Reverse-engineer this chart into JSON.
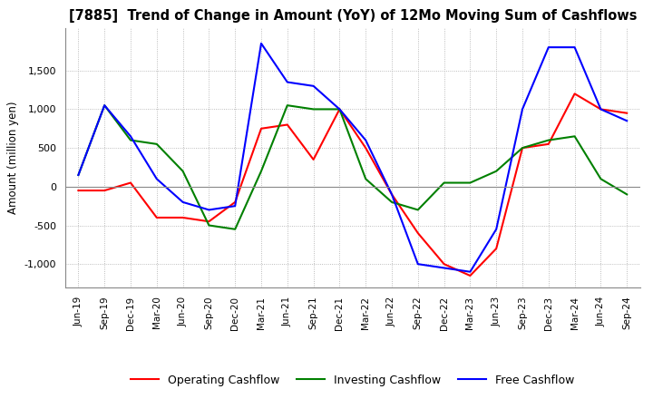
{
  "title": "[7885]  Trend of Change in Amount (YoY) of 12Mo Moving Sum of Cashflows",
  "ylabel": "Amount (million yen)",
  "ylim": [
    -1300,
    2050
  ],
  "yticks": [
    -1000,
    -500,
    0,
    500,
    1000,
    1500
  ],
  "background_color": "#ffffff",
  "grid_color": "#aaaaaa",
  "x_labels": [
    "Jun-19",
    "Sep-19",
    "Dec-19",
    "Mar-20",
    "Jun-20",
    "Sep-20",
    "Dec-20",
    "Mar-21",
    "Jun-21",
    "Sep-21",
    "Dec-21",
    "Mar-22",
    "Jun-22",
    "Sep-22",
    "Dec-22",
    "Mar-23",
    "Jun-23",
    "Sep-23",
    "Dec-23",
    "Mar-24",
    "Jun-24",
    "Sep-24"
  ],
  "operating": [
    -50,
    -50,
    50,
    -400,
    -400,
    -450,
    -200,
    750,
    800,
    350,
    1000,
    500,
    -100,
    -600,
    -1000,
    -1150,
    -800,
    500,
    550,
    1200,
    1000,
    950
  ],
  "investing": [
    150,
    1050,
    600,
    550,
    200,
    -500,
    -550,
    200,
    1050,
    1000,
    1000,
    100,
    -200,
    -300,
    50,
    50,
    200,
    500,
    600,
    650,
    100,
    -100
  ],
  "free": [
    150,
    1050,
    650,
    100,
    -200,
    -300,
    -250,
    1850,
    1350,
    1300,
    1000,
    600,
    -100,
    -1000,
    -1050,
    -1100,
    -550,
    1000,
    1800,
    1800,
    1000,
    850
  ],
  "op_color": "#ff0000",
  "inv_color": "#008000",
  "free_color": "#0000ff",
  "line_width": 1.5
}
